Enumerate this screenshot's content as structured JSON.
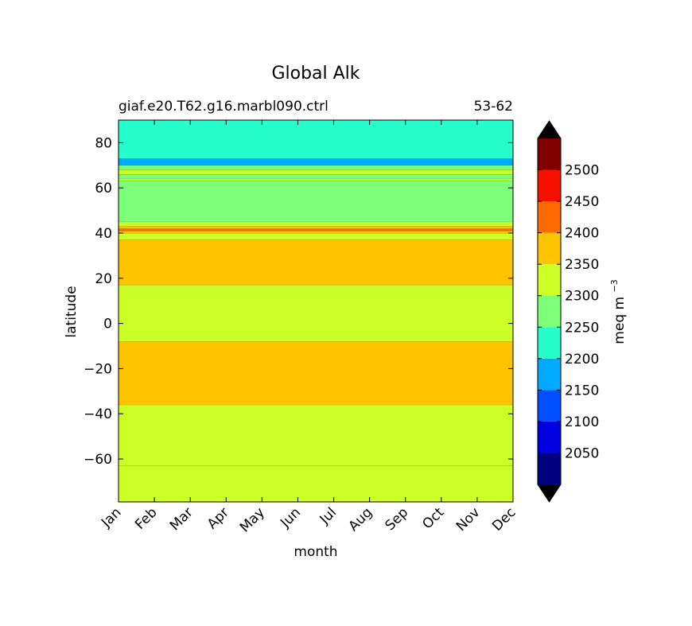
{
  "chart_data": {
    "type": "heatmap",
    "title": "Global Alk",
    "subtitle_left": "giaf.e20.T62.g16.marbl090.ctrl",
    "subtitle_right": "53-62",
    "xlabel": "month",
    "ylabel": "latitude",
    "x_ticks": [
      "Jan",
      "Feb",
      "Mar",
      "Apr",
      "May",
      "Jun",
      "Jul",
      "Aug",
      "Sep",
      "Oct",
      "Nov",
      "Dec"
    ],
    "y_ticks": [
      80,
      60,
      40,
      20,
      0,
      -20,
      -40,
      -60
    ],
    "ylim": [
      -79,
      90
    ],
    "colorbar": {
      "label": "meq m",
      "label_exponent": "−3",
      "tick_labels": [
        "2050",
        "2100",
        "2150",
        "2200",
        "2250",
        "2300",
        "2350",
        "2400",
        "2450",
        "2500"
      ],
      "levels": [
        2000,
        2050,
        2100,
        2150,
        2200,
        2250,
        2300,
        2350,
        2400,
        2450,
        2500,
        2550
      ],
      "colors": [
        "#000080",
        "#0000e0",
        "#0050ff",
        "#00aaff",
        "#26ffcc",
        "#7dff7a",
        "#ccff26",
        "#ffc400",
        "#ff6a00",
        "#f51000",
        "#800000"
      ],
      "under_color": "#000000",
      "over_color": "#000000",
      "extend": "both"
    },
    "bands": [
      {
        "lat_min": -79,
        "lat_max": -63,
        "value": 2320,
        "color": "#ccff26"
      },
      {
        "lat_min": -63,
        "lat_max": -36,
        "value": 2320,
        "color": "#ccff26"
      },
      {
        "lat_min": -36,
        "lat_max": -8,
        "value": 2370,
        "color": "#ffc400"
      },
      {
        "lat_min": -8,
        "lat_max": 17,
        "value": 2320,
        "color": "#ccff26"
      },
      {
        "lat_min": 17,
        "lat_max": 37,
        "value": 2370,
        "color": "#ffc400"
      },
      {
        "lat_min": 37,
        "lat_max": 40,
        "value": 2320,
        "color": "#ccff26"
      },
      {
        "lat_min": 40,
        "lat_max": 41,
        "value": 2370,
        "color": "#ffc400"
      },
      {
        "lat_min": 41,
        "lat_max": 42,
        "value": 2420,
        "color": "#ff6a00"
      },
      {
        "lat_min": 42,
        "lat_max": 43,
        "value": 2370,
        "color": "#ffc400"
      },
      {
        "lat_min": 43,
        "lat_max": 45,
        "value": 2320,
        "color": "#ccff26"
      },
      {
        "lat_min": 45,
        "lat_max": 63,
        "value": 2270,
        "color": "#7dff7a"
      },
      {
        "lat_min": 63,
        "lat_max": 64,
        "value": 2320,
        "color": "#ccff26"
      },
      {
        "lat_min": 64,
        "lat_max": 66,
        "value": 2270,
        "color": "#7dff7a"
      },
      {
        "lat_min": 66,
        "lat_max": 68,
        "value": 2320,
        "color": "#ccff26"
      },
      {
        "lat_min": 68,
        "lat_max": 70,
        "value": 2270,
        "color": "#7dff7a"
      },
      {
        "lat_min": 70,
        "lat_max": 73,
        "value": 2170,
        "color": "#00aaff"
      },
      {
        "lat_min": 73,
        "lat_max": 90,
        "value": 2220,
        "color": "#26ffcc"
      }
    ]
  }
}
